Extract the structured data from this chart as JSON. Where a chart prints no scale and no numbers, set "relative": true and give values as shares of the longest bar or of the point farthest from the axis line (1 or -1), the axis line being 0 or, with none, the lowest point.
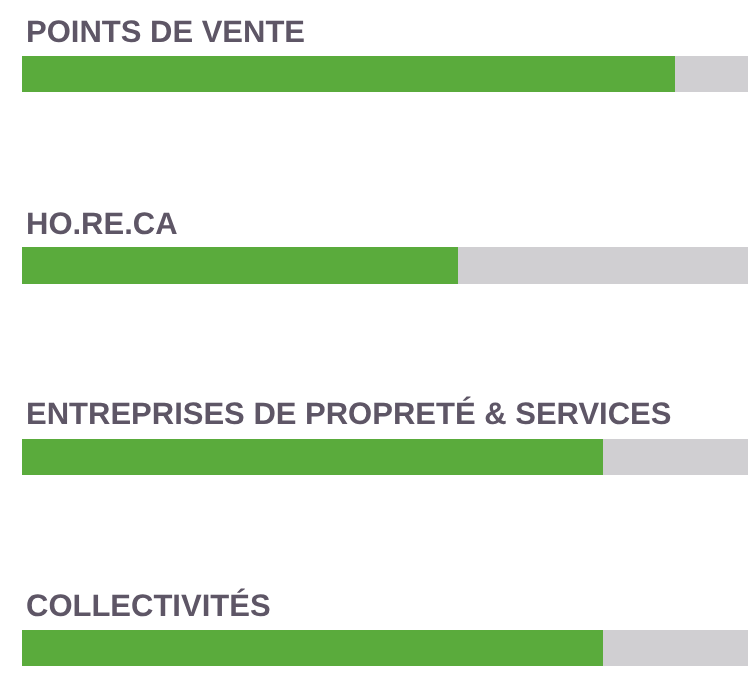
{
  "chart_data": {
    "type": "bar",
    "orientation": "horizontal",
    "stacked": true,
    "relative": true,
    "categories": [
      "POINTS DE VENTE",
      "HO.RE.CA",
      "ENTREPRISES DE PROPRETÉ & SERVICES",
      "COLLECTIVITÉS"
    ],
    "series": [
      {
        "color": "#5aab3c",
        "values": [
          0.9,
          0.6,
          0.8,
          0.8
        ]
      },
      {
        "color": "#d0cfd2",
        "values": [
          0.1,
          0.4,
          0.2,
          0.2
        ]
      }
    ],
    "legend": false
  }
}
